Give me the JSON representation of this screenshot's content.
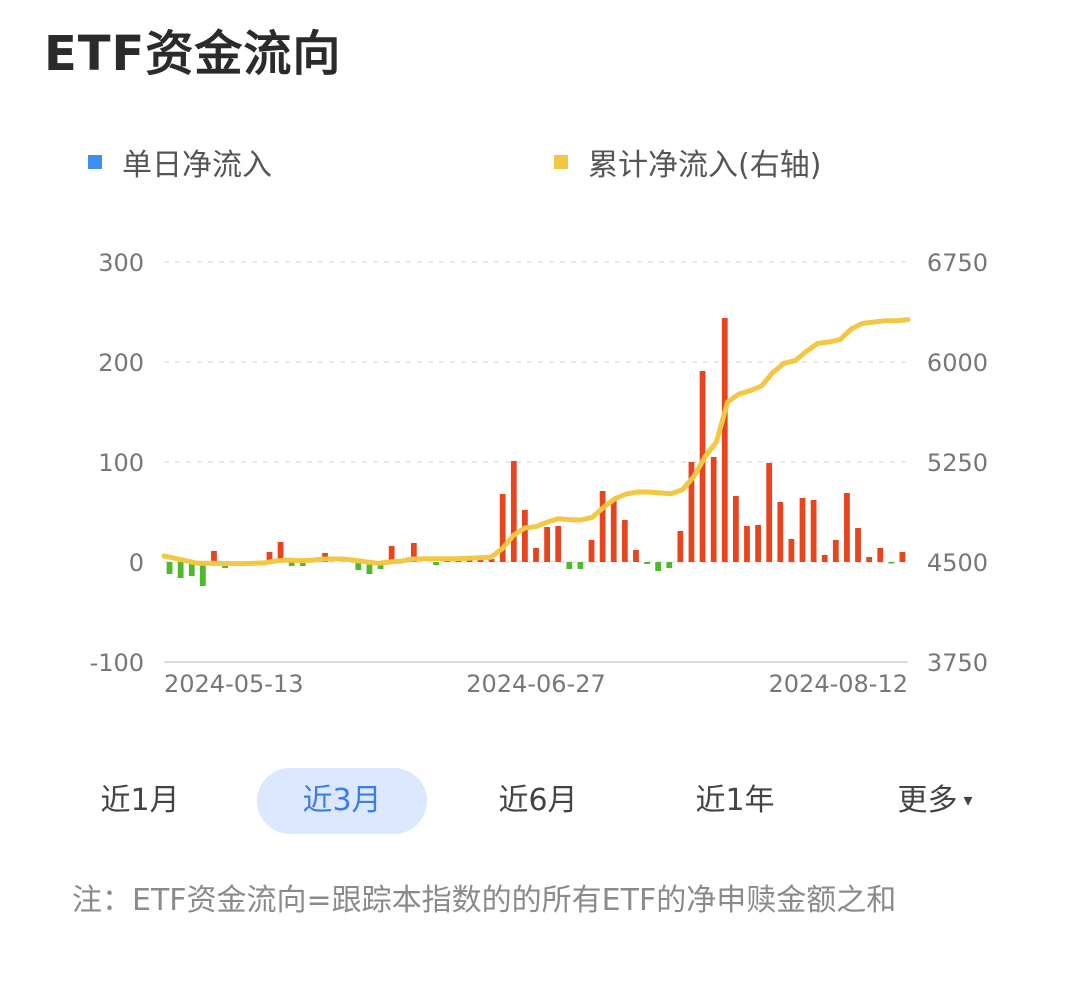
{
  "title": "ETF资金流向",
  "legend": {
    "daily": "单日净流入",
    "cumulative": "累计净流入(右轴)"
  },
  "colors": {
    "positive_bar": "#e8441e",
    "negative_bar": "#4cbb2a",
    "cumulative_line": "#f2c744",
    "legend_daily": "#3d8ef0"
  },
  "chart_data": {
    "type": "bar",
    "left_axis": {
      "ticks": [
        "300",
        "200",
        "100",
        "0",
        "-100"
      ],
      "ylim": [
        -100,
        300
      ]
    },
    "right_axis": {
      "ticks": [
        "6750",
        "6000",
        "5250",
        "4500",
        "3750"
      ],
      "ylim": [
        3750,
        6750
      ]
    },
    "x_tick_labels": [
      "2024-05-13",
      "2024-06-27",
      "2024-08-12"
    ],
    "grid": true,
    "series": [
      {
        "name": "单日净流入",
        "type": "bar",
        "values": [
          -12,
          -16,
          -14,
          -24,
          11,
          -6,
          0,
          0,
          0,
          10,
          20,
          -4,
          -4,
          0,
          9,
          0,
          0,
          -8,
          -12,
          -7,
          16,
          0,
          19,
          0,
          -3,
          4,
          3,
          3,
          3,
          3,
          68,
          101,
          52,
          14,
          35,
          36,
          -7,
          -7,
          22,
          71,
          62,
          42,
          12,
          -2,
          -9,
          -6,
          31,
          100,
          191,
          105,
          244,
          66,
          36,
          37,
          99,
          60,
          23,
          64,
          62,
          7,
          22,
          69,
          34,
          5,
          14,
          -1,
          10
        ]
      },
      {
        "name": "累计净流入(右轴)",
        "type": "line",
        "values": [
          4545,
          4528,
          4508,
          4490,
          4490,
          4489,
          4488,
          4488,
          4490,
          4495,
          4508,
          4515,
          4510,
          4512,
          4522,
          4523,
          4522,
          4512,
          4500,
          4490,
          4500,
          4506,
          4522,
          4525,
          4525,
          4525,
          4525,
          4528,
          4532,
          4535,
          4600,
          4700,
          4755,
          4765,
          4800,
          4825,
          4818,
          4815,
          4835,
          4910,
          4975,
          5010,
          5025,
          5025,
          5018,
          5012,
          5042,
          5140,
          5290,
          5400,
          5700,
          5760,
          5785,
          5820,
          5920,
          5990,
          6010,
          6080,
          6140,
          6150,
          6170,
          6250,
          6290,
          6300,
          6310,
          6310,
          6318
        ]
      }
    ]
  },
  "range_options": [
    {
      "label": "近1月",
      "active": false
    },
    {
      "label": "近3月",
      "active": true
    },
    {
      "label": "近6月",
      "active": false
    },
    {
      "label": "近1年",
      "active": false
    },
    {
      "label": "更多",
      "active": false
    }
  ],
  "more_caret": "▾",
  "note": "注：ETF资金流向=跟踪本指数的的所有ETF的净申赎金额之和"
}
